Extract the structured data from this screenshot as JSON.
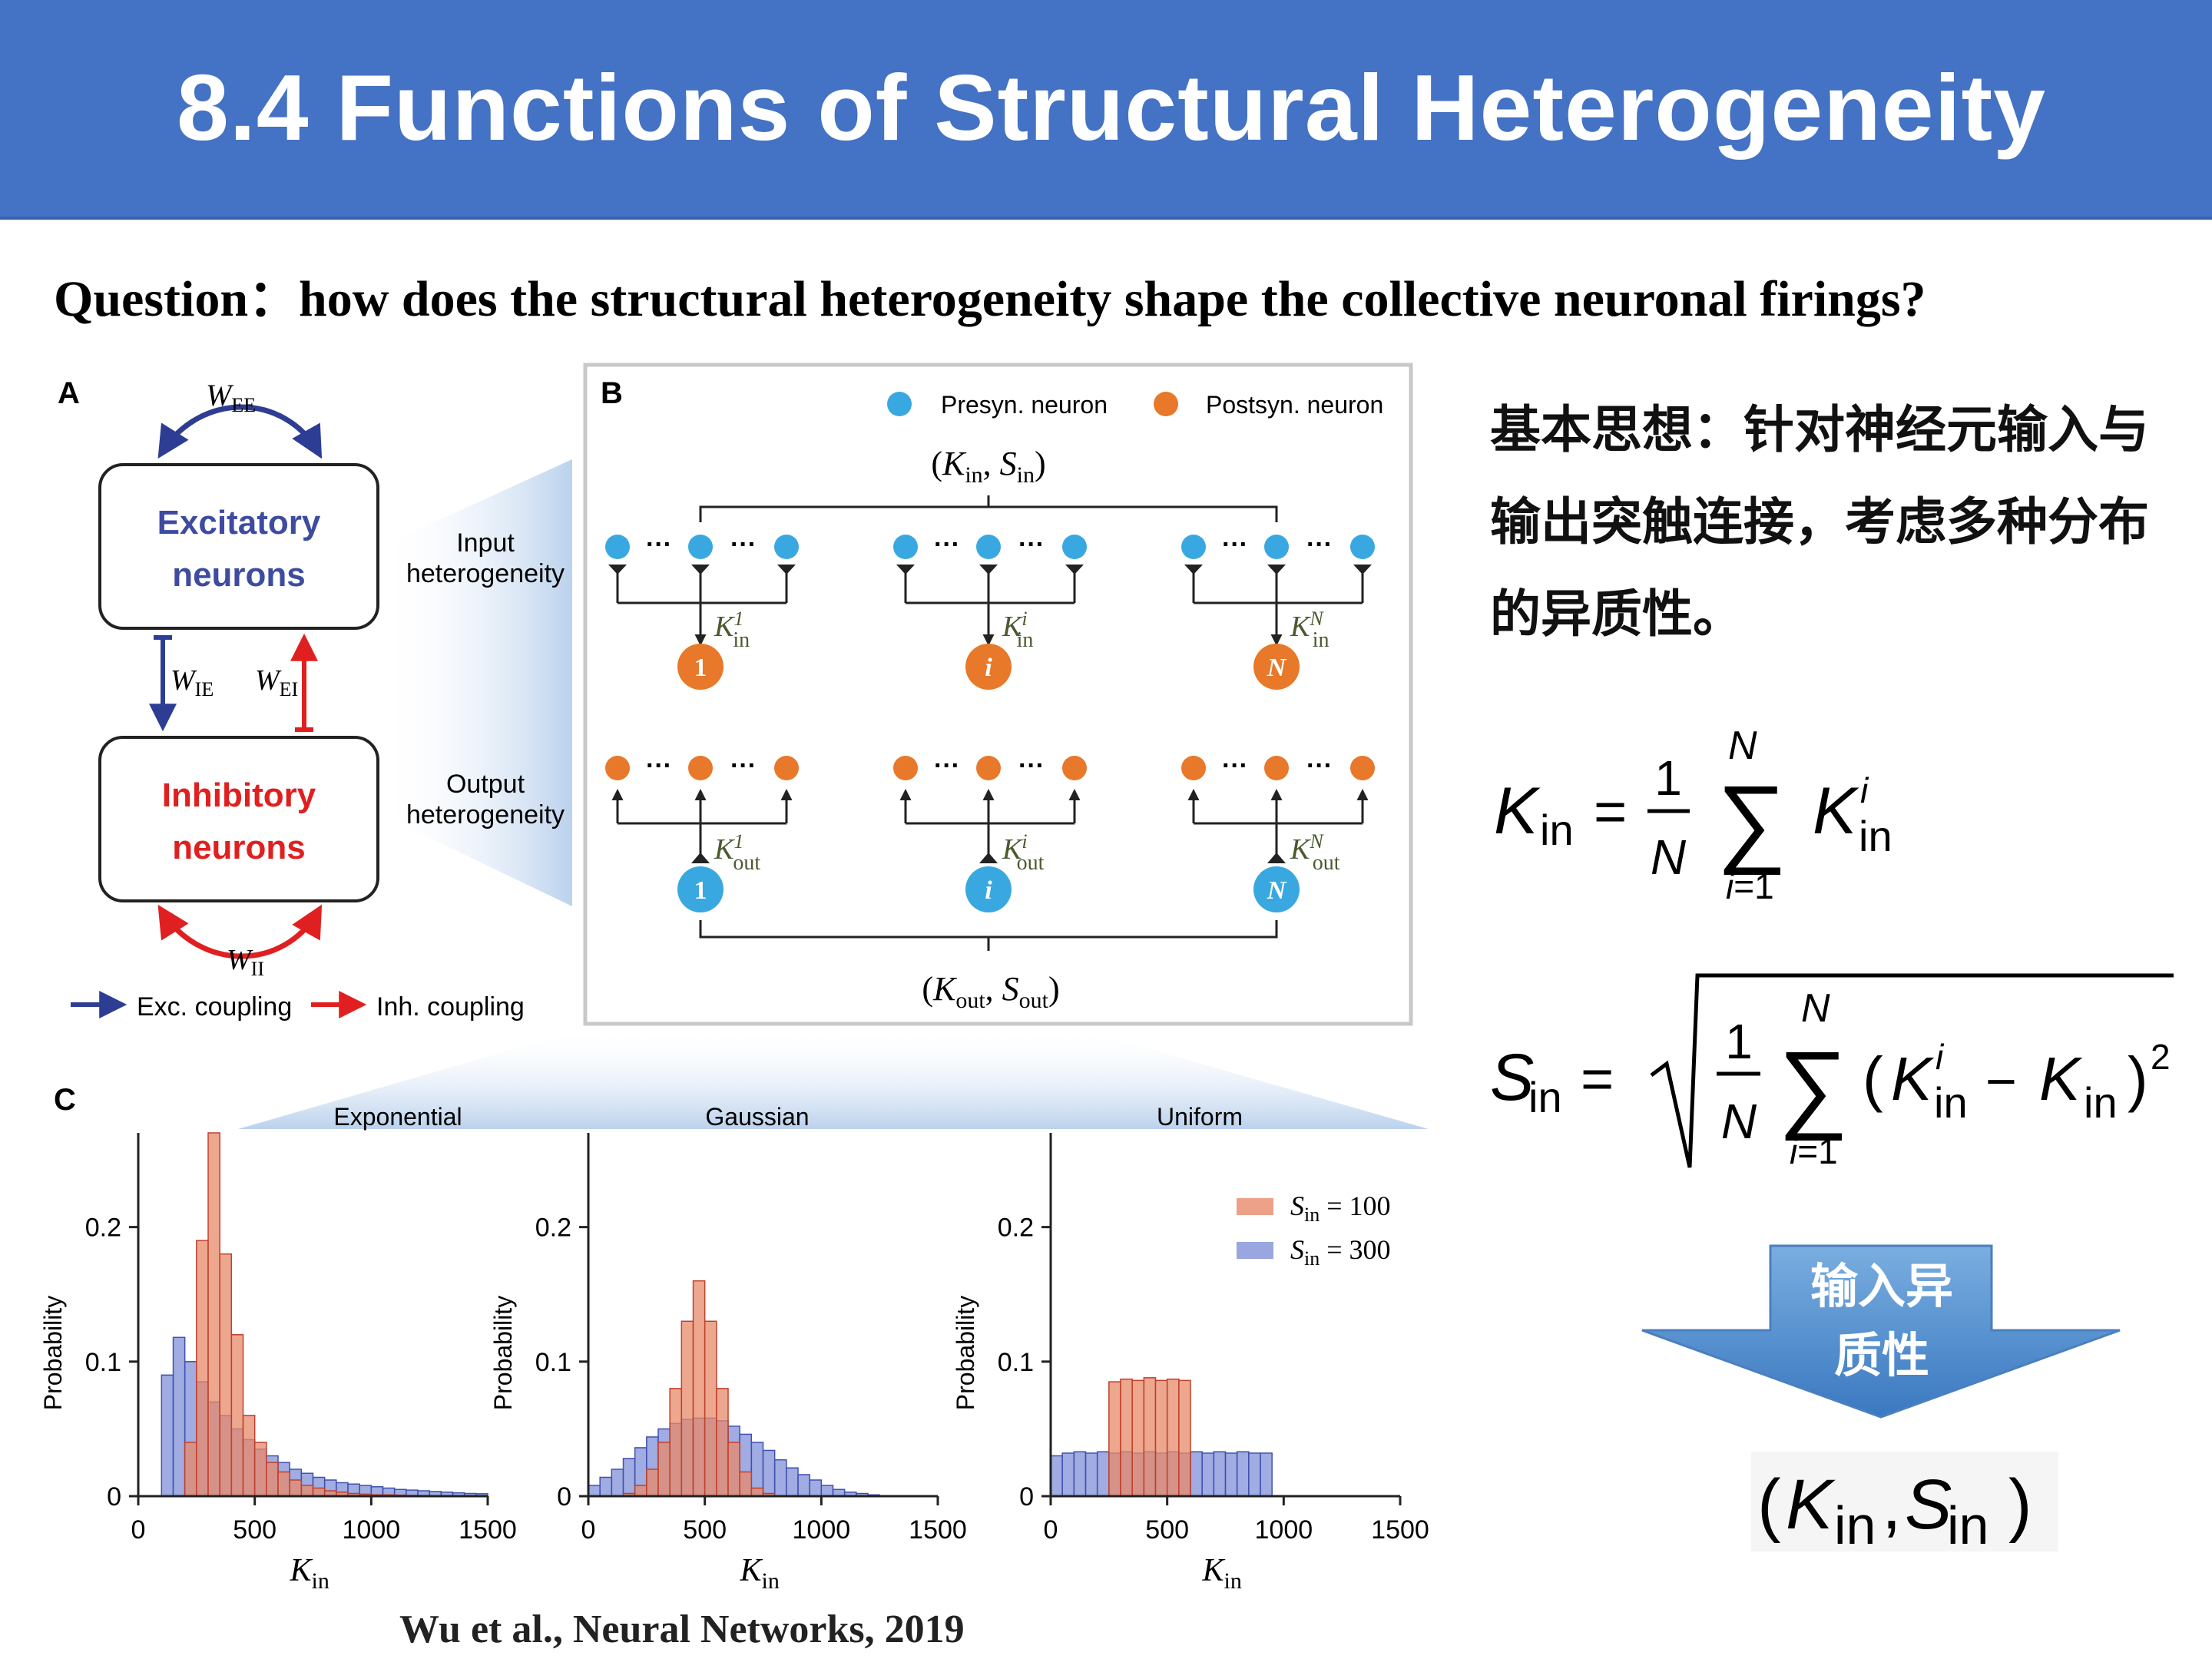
{
  "title": "8.4 Functions of Structural Heterogeneity",
  "question": "Question：how does the structural heterogeneity shape the collective neuronal firings?",
  "citation": "Wu et al., Neural Networks, 2019",
  "idea_text": "基本思想：针对神经元输入与输出突触连接，考虑多种分布的异质性。",
  "arrow_label": "输入异质性",
  "panel_a": {
    "label": "A",
    "excitatory": "Excitatory neurons",
    "excitatory_line1": "Excitatory",
    "excitatory_line2": "neurons",
    "inhibitory_line1": "Inhibitory",
    "inhibitory_line2": "neurons",
    "w_ee": "W",
    "w_ee_sub": "EE",
    "w_ie_sub": "IE",
    "w_ei_sub": "EI",
    "w_ii_sub": "II",
    "exc_coupling": "Exc. coupling",
    "inh_coupling": "Inh.  coupling",
    "input_het_1": "Input",
    "input_het_2": "heterogeneity",
    "output_het_1": "Output",
    "output_het_2": "heterogeneity"
  },
  "panel_b": {
    "label": "B",
    "presyn": "Presyn.  neuron",
    "postsyn": "Postsyn. neuron",
    "node_1": "1",
    "node_i": "i",
    "node_n": "N"
  },
  "panel_c": {
    "label": "C",
    "x_label": "K",
    "x_label_sub": "in",
    "y_label": "Probability",
    "legend_100": "= 100",
    "legend_300": "= 300",
    "legend_s": "S",
    "legend_s_sub": "in"
  },
  "colors": {
    "banner": "#4472c4",
    "presyn": "#3aa8e0",
    "postsyn": "#e8782a",
    "exc": "#2e3d94",
    "inh": "#e02020",
    "hist_red": "#e8896a",
    "hist_blue": "#8090d8"
  },
  "chart_data": [
    {
      "type": "bar",
      "title": "Exponential",
      "xlabel": "K_in",
      "ylabel": "Probability",
      "xlim": [
        0,
        1500
      ],
      "ylim": [
        0,
        0.27
      ],
      "xticks": [
        "0",
        "500",
        "1000",
        "1500"
      ],
      "yticks": [
        "0",
        "0.1",
        "0.2"
      ],
      "bin_width": 50,
      "series": [
        {
          "name": "S_in = 100",
          "bins_start": 100,
          "values": [
            0.0,
            0.0,
            0.04,
            0.19,
            0.27,
            0.18,
            0.12,
            0.06,
            0.04,
            0.025,
            0.018,
            0.012,
            0.008,
            0.006,
            0.004,
            0.003,
            0.002,
            0.0015,
            0.001,
            0.001,
            0.0008,
            0.0006,
            0.0005,
            0.0004,
            0.0003,
            0.0002,
            0.0002,
            0.0001
          ]
        },
        {
          "name": "S_in = 300",
          "bins_start": 100,
          "values": [
            0.09,
            0.118,
            0.1,
            0.085,
            0.07,
            0.06,
            0.05,
            0.042,
            0.035,
            0.03,
            0.025,
            0.02,
            0.017,
            0.014,
            0.012,
            0.01,
            0.009,
            0.008,
            0.007,
            0.006,
            0.005,
            0.0045,
            0.004,
            0.0035,
            0.003,
            0.0025,
            0.002,
            0.0018
          ]
        }
      ]
    },
    {
      "type": "bar",
      "title": "Gaussian",
      "xlabel": "K_in",
      "ylabel": "Probability",
      "xlim": [
        0,
        1500
      ],
      "ylim": [
        0,
        0.27
      ],
      "xticks": [
        "0",
        "500",
        "1000",
        "1500"
      ],
      "yticks": [
        "0",
        "0.1",
        "0.2"
      ],
      "bin_width": 50,
      "series": [
        {
          "name": "S_in = 100",
          "bins_start": 150,
          "values": [
            0.002,
            0.008,
            0.02,
            0.04,
            0.08,
            0.13,
            0.16,
            0.13,
            0.08,
            0.04,
            0.018,
            0.006,
            0.002
          ]
        },
        {
          "name": "S_in = 300",
          "bins_start": 0,
          "values": [
            0.008,
            0.014,
            0.02,
            0.028,
            0.036,
            0.044,
            0.05,
            0.054,
            0.057,
            0.058,
            0.058,
            0.056,
            0.052,
            0.046,
            0.04,
            0.034,
            0.027,
            0.021,
            0.016,
            0.012,
            0.008,
            0.005,
            0.003,
            0.002,
            0.001
          ]
        }
      ]
    },
    {
      "type": "bar",
      "title": "Uniform",
      "xlabel": "K_in",
      "ylabel": "Probability",
      "xlim": [
        0,
        1500
      ],
      "ylim": [
        0,
        0.27
      ],
      "xticks": [
        "0",
        "500",
        "1000",
        "1500"
      ],
      "yticks": [
        "0",
        "0.1",
        "0.2"
      ],
      "bin_width": 50,
      "legend": "top-right",
      "series": [
        {
          "name": "S_in = 100",
          "bins_start": 250,
          "values": [
            0.085,
            0.087,
            0.086,
            0.088,
            0.086,
            0.087,
            0.086
          ]
        },
        {
          "name": "S_in = 300",
          "bins_start": 0,
          "values": [
            0.03,
            0.032,
            0.033,
            0.032,
            0.033,
            0.032,
            0.033,
            0.032,
            0.033,
            0.032,
            0.033,
            0.032,
            0.033,
            0.032,
            0.033,
            0.032,
            0.033,
            0.032,
            0.032
          ]
        }
      ]
    }
  ]
}
